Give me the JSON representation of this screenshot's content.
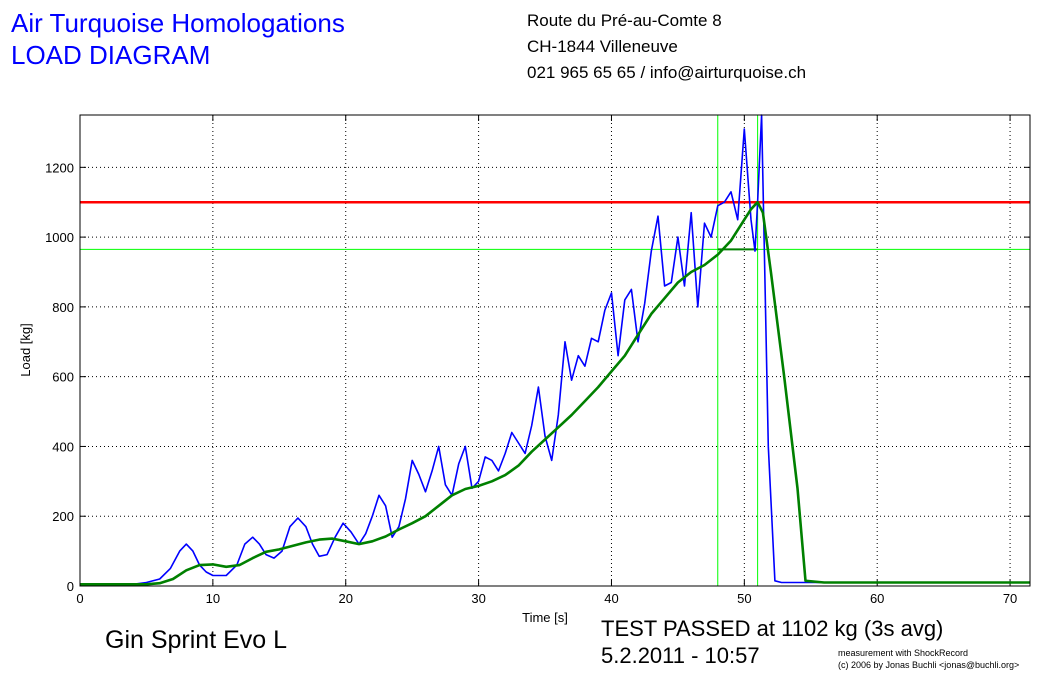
{
  "header": {
    "company": "Air Turquoise Homologations",
    "doc_title": "LOAD DIAGRAM",
    "address_line1": "Route du Pré-au-Comte 8",
    "address_line2": "CH-1844 Villeneuve",
    "contact": "021 965 65 65 / info@airturquoise.ch"
  },
  "footer": {
    "glider": "Gin Sprint Evo L",
    "result": "TEST PASSED at 1102 kg (3s avg)",
    "datetime": "5.2.2011 - 10:57",
    "credit_line1": "measurement with ShockRecord",
    "credit_line2": "(c) 2006 by Jonas Buchli <jonas@buchli.org>"
  },
  "colors": {
    "raw": "#0000ff",
    "avg": "#008000",
    "limit": "#ff0000",
    "marker": "#00ff00"
  },
  "chart_data": {
    "type": "line",
    "xlabel": "Time [s]",
    "ylabel": "Load [kg]",
    "xlim": [
      0,
      71.5
    ],
    "ylim": [
      0,
      1350
    ],
    "xticks": [
      0,
      10,
      20,
      30,
      40,
      50,
      60,
      70
    ],
    "yticks": [
      0,
      200,
      400,
      600,
      800,
      1000,
      1200
    ],
    "grid": true,
    "reference_lines": {
      "limit_load": 1100,
      "threshold_load": 965,
      "window_start": 48,
      "window_end": 51
    },
    "series": [
      {
        "color": "#0000ff",
        "x": [
          0,
          2,
          4,
          5,
          6,
          6.8,
          7.5,
          8,
          8.5,
          9,
          9.5,
          10,
          11,
          11.8,
          12.4,
          13,
          13.5,
          14,
          14.6,
          15.2,
          15.8,
          16.4,
          17,
          17.5,
          18,
          18.6,
          19.2,
          19.8,
          20.4,
          21,
          21.5,
          22,
          22.5,
          23,
          23.5,
          24,
          24.5,
          25,
          25.5,
          26,
          26.5,
          27,
          27.5,
          28,
          28.5,
          29,
          29.5,
          30,
          30.5,
          31,
          31.5,
          32,
          32.5,
          33,
          33.5,
          34,
          34.5,
          35,
          35.5,
          36,
          36.5,
          37,
          37.5,
          38,
          38.5,
          39,
          39.5,
          40,
          40.5,
          41,
          41.5,
          42,
          42.5,
          43,
          43.5,
          44,
          44.5,
          45,
          45.5,
          46,
          46.5,
          47,
          47.5,
          48,
          48.5,
          49,
          49.5,
          50,
          50.5,
          50.8,
          51,
          51.3,
          51.8,
          52.3,
          52.8,
          53.5,
          55,
          60,
          65,
          71.5
        ],
        "y": [
          5,
          5,
          5,
          10,
          20,
          50,
          100,
          120,
          100,
          60,
          40,
          30,
          30,
          60,
          120,
          140,
          120,
          90,
          80,
          100,
          170,
          195,
          170,
          120,
          85,
          90,
          140,
          180,
          155,
          120,
          150,
          200,
          260,
          230,
          140,
          170,
          250,
          360,
          320,
          270,
          330,
          400,
          290,
          260,
          350,
          400,
          280,
          300,
          370,
          360,
          330,
          380,
          440,
          410,
          380,
          460,
          570,
          430,
          360,
          490,
          700,
          590,
          660,
          630,
          710,
          700,
          790,
          840,
          660,
          820,
          850,
          700,
          810,
          960,
          1060,
          860,
          870,
          1000,
          860,
          1070,
          800,
          1040,
          1000,
          1090,
          1100,
          1130,
          1050,
          1310,
          1050,
          960,
          1100,
          1350,
          400,
          15,
          10,
          10,
          10,
          10,
          10,
          10
        ]
      },
      {
        "color": "#008000",
        "x": [
          0,
          3,
          5,
          6,
          7,
          8,
          9,
          10,
          11,
          12,
          13,
          14,
          15,
          16,
          17,
          18,
          19,
          20,
          21,
          22,
          23,
          24,
          25,
          26,
          27,
          28,
          29,
          30,
          31,
          32,
          33,
          34,
          35,
          36,
          37,
          38,
          39,
          40,
          41,
          42,
          43,
          44,
          45,
          46,
          47,
          48,
          49,
          50,
          50.5,
          51,
          51.4,
          52,
          53,
          54,
          54.6,
          56,
          60,
          65,
          71.5
        ],
        "y": [
          5,
          5,
          5,
          8,
          20,
          45,
          60,
          62,
          55,
          60,
          80,
          98,
          105,
          115,
          125,
          133,
          136,
          128,
          120,
          128,
          142,
          162,
          180,
          200,
          230,
          260,
          278,
          287,
          300,
          318,
          345,
          385,
          420,
          455,
          490,
          530,
          570,
          615,
          660,
          720,
          780,
          825,
          870,
          900,
          920,
          950,
          990,
          1050,
          1080,
          1100,
          1070,
          900,
          600,
          280,
          15,
          10,
          10,
          10,
          10
        ]
      }
    ]
  }
}
